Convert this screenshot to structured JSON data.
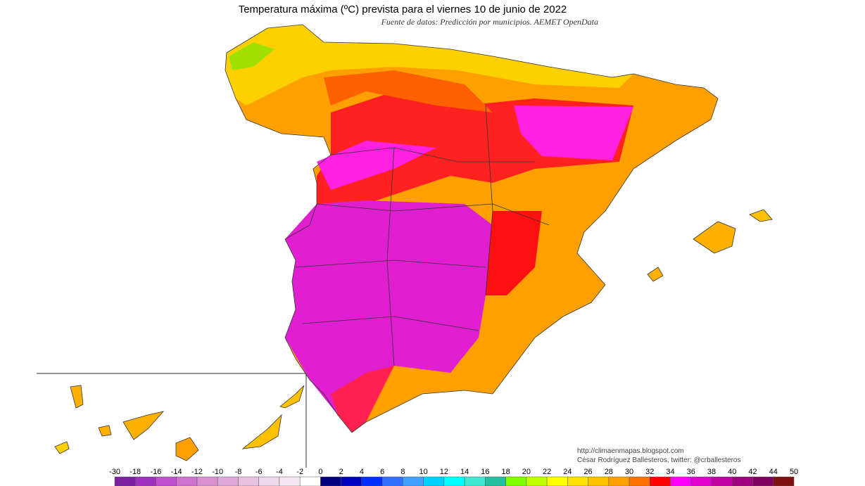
{
  "title": "Temperatura máxima (ºC) prevista para el viernes 10 de junio de 2022",
  "subtitle": "Fuente de datos: Predicción por municipios. AEMET OpenData",
  "credits": [
    "http://climaenmapas.blogspot.com",
    "César Rodríguez Ballesteros, twitter: @crballesteros"
  ],
  "legend": {
    "ticks": [
      -30,
      -18,
      -16,
      -14,
      -12,
      -10,
      -8,
      -6,
      -4,
      -2,
      0,
      2,
      4,
      6,
      8,
      10,
      12,
      14,
      16,
      18,
      20,
      22,
      24,
      26,
      28,
      30,
      32,
      34,
      36,
      38,
      40,
      42,
      44,
      50
    ],
    "colors": [
      "#7a1fa0",
      "#a030c0",
      "#c050d0",
      "#d070d0",
      "#d890d0",
      "#e0a8d8",
      "#e8c0e0",
      "#f0d8ec",
      "#f4e8f2",
      "#ffffff",
      "#000080",
      "#0000c0",
      "#0030ff",
      "#3070ff",
      "#40a0ff",
      "#00d0ff",
      "#00ffff",
      "#40e8d0",
      "#20c0a0",
      "#80ff00",
      "#c0ff00",
      "#ffff00",
      "#ffe000",
      "#ffc000",
      "#ffa000",
      "#ff7000",
      "#ff0000",
      "#ff00ff",
      "#e000d0",
      "#c000a0",
      "#a00080",
      "#800060",
      "#801010"
    ]
  }
}
